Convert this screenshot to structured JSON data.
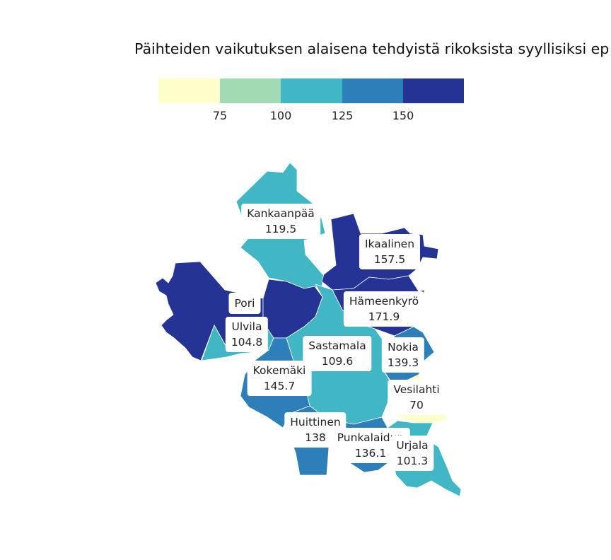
{
  "chart_data": {
    "type": "choropleth",
    "title": "Päihteiden vaikutuksen alaisena tehdyistä rikoksista syyllisiksi ep",
    "legend": {
      "breaks": [
        75,
        100,
        125,
        150
      ],
      "colors": [
        "#ffffcc",
        "#a1dab4",
        "#41b6c4",
        "#2c7fb8",
        "#253494"
      ]
    },
    "regions": [
      {
        "name": "Kankaanpää",
        "value": 119.5,
        "color": "#41b6c4"
      },
      {
        "name": "Ikaalinen",
        "value": 157.5,
        "color": "#253494"
      },
      {
        "name": "Pori",
        "value": null,
        "color": "#253494"
      },
      {
        "name": "Hämeenkyrö",
        "value": 171.9,
        "color": "#253494"
      },
      {
        "name": "Ulvila",
        "value": 104.8,
        "color": "#41b6c4"
      },
      {
        "name": "Sastamala",
        "value": 109.6,
        "color": "#41b6c4"
      },
      {
        "name": "Nokia",
        "value": 139.3,
        "color": "#2c7fb8"
      },
      {
        "name": "Kokemäki",
        "value": 145.7,
        "color": "#2c7fb8"
      },
      {
        "name": "Vesilahti",
        "value": 70,
        "color": "#ffffcc"
      },
      {
        "name": "Huittinen",
        "value": 138,
        "color": "#2c7fb8"
      },
      {
        "name": "Punkalaidun",
        "value": 136.1,
        "color": "#2c7fb8"
      },
      {
        "name": "Urjala",
        "value": 101.3,
        "color": "#41b6c4"
      }
    ]
  },
  "labels": [
    {
      "name": "Kankaanpää",
      "value": "119.5"
    },
    {
      "name": "Ikaalinen",
      "value": "157.5"
    },
    {
      "name": "Pori",
      "value": ""
    },
    {
      "name": "Hämeenkyrö",
      "value": "171.9"
    },
    {
      "name": "Ulvila",
      "value": "104.8"
    },
    {
      "name": "Sastamala",
      "value": "109.6"
    },
    {
      "name": "Nokia",
      "value": "139.3"
    },
    {
      "name": "Kokemäki",
      "value": "145.7"
    },
    {
      "name": "Vesilahti",
      "value": "70"
    },
    {
      "name": "Huittinen",
      "value": "138"
    },
    {
      "name": "Punkalaidun",
      "value": "136.1"
    },
    {
      "name": "Urjala",
      "value": "101.3"
    }
  ]
}
